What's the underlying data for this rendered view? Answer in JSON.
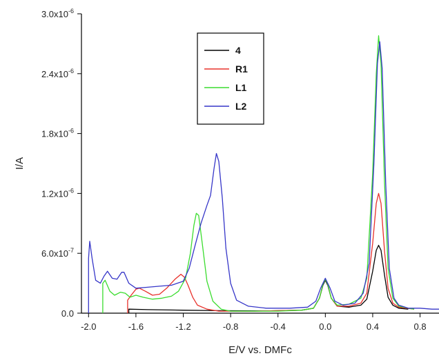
{
  "chart_data": {
    "type": "line",
    "title": "",
    "xlabel": "E/V vs. DMFc",
    "ylabel": "I/A",
    "xlim": [
      -2.06,
      0.96
    ],
    "ylim": [
      0,
      3e-06
    ],
    "xticks": [
      {
        "value": -2.0,
        "label": "-2.0"
      },
      {
        "value": -1.6,
        "label": "-1.6"
      },
      {
        "value": -1.2,
        "label": "-1.2"
      },
      {
        "value": -0.8,
        "label": "-0.8"
      },
      {
        "value": -0.4,
        "label": "-0.4"
      },
      {
        "value": 0.0,
        "label": "0.0"
      },
      {
        "value": 0.4,
        "label": "0.4"
      },
      {
        "value": 0.8,
        "label": "0.8"
      }
    ],
    "yticks": [
      {
        "value": 0.0,
        "label": "0.0"
      },
      {
        "value": 6e-07,
        "mantissa": "6.0x10",
        "exponent": "-7"
      },
      {
        "value": 1.2e-06,
        "mantissa": "1.2x10",
        "exponent": "-6"
      },
      {
        "value": 1.8e-06,
        "mantissa": "1.8x10",
        "exponent": "-6"
      },
      {
        "value": 2.4e-06,
        "mantissa": "2.4x10",
        "exponent": "-6"
      },
      {
        "value": 3e-06,
        "mantissa": "3.0x10",
        "exponent": "-6"
      }
    ],
    "legend_position": "top-center",
    "grid": false,
    "series": [
      {
        "name": "4",
        "color": "#000000",
        "points": [
          [
            -1.66,
            0.0
          ],
          [
            -1.66,
            4e-08
          ],
          [
            -1.5,
            3.5e-08
          ],
          [
            -1.2,
            3e-08
          ],
          [
            -0.9,
            2.5e-08
          ],
          [
            -0.5,
            2.2e-08
          ],
          [
            -0.2,
            3e-08
          ],
          [
            -0.1,
            5e-08
          ],
          [
            -0.05,
            1.5e-07
          ],
          [
            -0.02,
            2.8e-07
          ],
          [
            0.0,
            3.3e-07
          ],
          [
            0.02,
            2.8e-07
          ],
          [
            0.05,
            1.5e-07
          ],
          [
            0.1,
            7e-08
          ],
          [
            0.2,
            6e-08
          ],
          [
            0.3,
            8e-08
          ],
          [
            0.35,
            1.4e-07
          ],
          [
            0.4,
            4.2e-07
          ],
          [
            0.43,
            6.3e-07
          ],
          [
            0.45,
            6.8e-07
          ],
          [
            0.47,
            6.3e-07
          ],
          [
            0.5,
            3.8e-07
          ],
          [
            0.53,
            1.6e-07
          ],
          [
            0.57,
            8e-08
          ],
          [
            0.62,
            5e-08
          ],
          [
            0.7,
            4e-08
          ]
        ]
      },
      {
        "name": "R1",
        "color": "#e8302a",
        "points": [
          [
            -1.67,
            0.0
          ],
          [
            -1.67,
            1.3e-07
          ],
          [
            -1.64,
            1.8e-07
          ],
          [
            -1.6,
            2.4e-07
          ],
          [
            -1.57,
            2.5e-07
          ],
          [
            -1.52,
            2.2e-07
          ],
          [
            -1.46,
            1.8e-07
          ],
          [
            -1.4,
            1.9e-07
          ],
          [
            -1.34,
            2.5e-07
          ],
          [
            -1.27,
            3.4e-07
          ],
          [
            -1.22,
            3.9e-07
          ],
          [
            -1.19,
            3.6e-07
          ],
          [
            -1.16,
            2.8e-07
          ],
          [
            -1.12,
            1.6e-07
          ],
          [
            -1.08,
            8e-08
          ],
          [
            -1.0,
            4e-08
          ],
          [
            -0.9,
            2e-08
          ],
          [
            -0.6,
            2e-08
          ],
          [
            -0.2,
            3e-08
          ],
          [
            -0.1,
            5e-08
          ],
          [
            -0.05,
            1.5e-07
          ],
          [
            -0.02,
            2.9e-07
          ],
          [
            0.0,
            3.4e-07
          ],
          [
            0.02,
            2.9e-07
          ],
          [
            0.05,
            1.5e-07
          ],
          [
            0.1,
            7e-08
          ],
          [
            0.2,
            7e-08
          ],
          [
            0.3,
            1e-07
          ],
          [
            0.35,
            2e-07
          ],
          [
            0.4,
            7e-07
          ],
          [
            0.43,
            1.1e-06
          ],
          [
            0.45,
            1.2e-06
          ],
          [
            0.47,
            1.1e-06
          ],
          [
            0.5,
            6.2e-07
          ],
          [
            0.53,
            2.5e-07
          ],
          [
            0.57,
            1e-07
          ],
          [
            0.62,
            6e-08
          ],
          [
            0.75,
            4e-08
          ]
        ]
      },
      {
        "name": "L1",
        "color": "#3adc2e",
        "points": [
          [
            -1.88,
            0.0
          ],
          [
            -1.88,
            3e-07
          ],
          [
            -1.86,
            3.3e-07
          ],
          [
            -1.82,
            2.2e-07
          ],
          [
            -1.78,
            1.8e-07
          ],
          [
            -1.73,
            2.1e-07
          ],
          [
            -1.69,
            2e-07
          ],
          [
            -1.65,
            1.6e-07
          ],
          [
            -1.6,
            1.8e-07
          ],
          [
            -1.54,
            1.6e-07
          ],
          [
            -1.46,
            1.4e-07
          ],
          [
            -1.38,
            1.5e-07
          ],
          [
            -1.3,
            1.7e-07
          ],
          [
            -1.24,
            2.2e-07
          ],
          [
            -1.18,
            3.5e-07
          ],
          [
            -1.14,
            6e-07
          ],
          [
            -1.11,
            8.8e-07
          ],
          [
            -1.09,
            1e-06
          ],
          [
            -1.07,
            9.8e-07
          ],
          [
            -1.04,
            7e-07
          ],
          [
            -1.0,
            3.2e-07
          ],
          [
            -0.95,
            1.2e-07
          ],
          [
            -0.88,
            4e-08
          ],
          [
            -0.8,
            2e-08
          ],
          [
            -0.4,
            2e-08
          ],
          [
            -0.2,
            3e-08
          ],
          [
            -0.1,
            5e-08
          ],
          [
            -0.05,
            1.5e-07
          ],
          [
            -0.02,
            2.9e-07
          ],
          [
            0.0,
            3.4e-07
          ],
          [
            0.02,
            2.9e-07
          ],
          [
            0.05,
            1.5e-07
          ],
          [
            0.1,
            8e-08
          ],
          [
            0.2,
            9e-08
          ],
          [
            0.3,
            1.5e-07
          ],
          [
            0.35,
            3.5e-07
          ],
          [
            0.4,
            1.4e-06
          ],
          [
            0.43,
            2.4e-06
          ],
          [
            0.45,
            2.78e-06
          ],
          [
            0.47,
            2.5e-06
          ],
          [
            0.5,
            1.3e-06
          ],
          [
            0.53,
            4.5e-07
          ],
          [
            0.57,
            1.5e-07
          ],
          [
            0.62,
            7e-08
          ],
          [
            0.7,
            5e-08
          ],
          [
            0.75,
            4e-08
          ]
        ]
      },
      {
        "name": "L2",
        "color": "#3535c8",
        "points": [
          [
            -2.0,
            0.0
          ],
          [
            -2.0,
            5.5e-07
          ],
          [
            -1.99,
            7.2e-07
          ],
          [
            -1.97,
            5.5e-07
          ],
          [
            -1.94,
            3.3e-07
          ],
          [
            -1.9,
            3e-07
          ],
          [
            -1.87,
            3.7e-07
          ],
          [
            -1.84,
            4.2e-07
          ],
          [
            -1.8,
            3.5e-07
          ],
          [
            -1.76,
            3.4e-07
          ],
          [
            -1.72,
            4.1e-07
          ],
          [
            -1.7,
            4.1e-07
          ],
          [
            -1.66,
            3e-07
          ],
          [
            -1.6,
            2.5e-07
          ],
          [
            -1.5,
            2.6e-07
          ],
          [
            -1.4,
            2.7e-07
          ],
          [
            -1.3,
            2.8e-07
          ],
          [
            -1.2,
            3.2e-07
          ],
          [
            -1.15,
            4.5e-07
          ],
          [
            -1.1,
            6.8e-07
          ],
          [
            -1.05,
            9e-07
          ],
          [
            -1.0,
            1.08e-06
          ],
          [
            -0.97,
            1.18e-06
          ],
          [
            -0.94,
            1.45e-06
          ],
          [
            -0.92,
            1.6e-06
          ],
          [
            -0.9,
            1.52e-06
          ],
          [
            -0.87,
            1.15e-06
          ],
          [
            -0.84,
            6.5e-07
          ],
          [
            -0.8,
            3e-07
          ],
          [
            -0.75,
            1.3e-07
          ],
          [
            -0.65,
            7e-08
          ],
          [
            -0.5,
            5e-08
          ],
          [
            -0.3,
            5e-08
          ],
          [
            -0.15,
            6e-08
          ],
          [
            -0.08,
            1.2e-07
          ],
          [
            -0.04,
            2.5e-07
          ],
          [
            0.0,
            3.5e-07
          ],
          [
            0.04,
            2.5e-07
          ],
          [
            0.08,
            1.2e-07
          ],
          [
            0.15,
            8e-08
          ],
          [
            0.25,
            1e-07
          ],
          [
            0.32,
            2e-07
          ],
          [
            0.37,
            5e-07
          ],
          [
            0.41,
            1.5e-06
          ],
          [
            0.44,
            2.5e-06
          ],
          [
            0.46,
            2.72e-06
          ],
          [
            0.48,
            2.45e-06
          ],
          [
            0.51,
            1.3e-06
          ],
          [
            0.54,
            4.5e-07
          ],
          [
            0.58,
            1.5e-07
          ],
          [
            0.62,
            8e-08
          ],
          [
            0.7,
            5e-08
          ],
          [
            0.8,
            5e-08
          ],
          [
            0.9,
            4e-08
          ],
          [
            0.96,
            4e-08
          ]
        ]
      }
    ]
  }
}
